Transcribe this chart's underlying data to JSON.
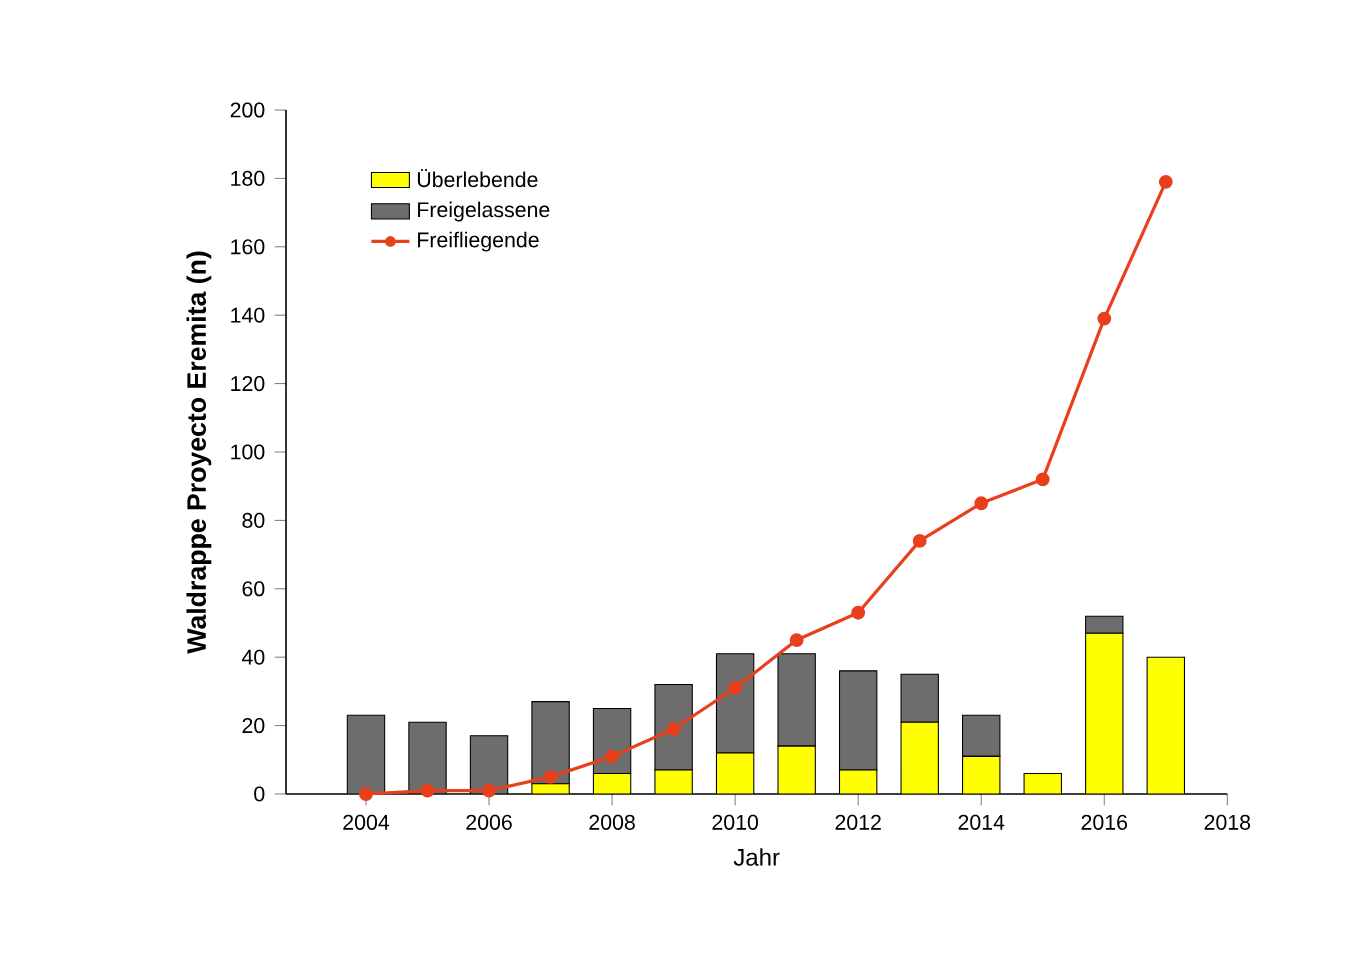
{
  "chart_data": {
    "type": "bar",
    "stacked": true,
    "xlabel": "Jahr",
    "ylabel": "Waldrappe Proyecto Eremita (n)",
    "x": [
      2004,
      2005,
      2006,
      2007,
      2008,
      2009,
      2010,
      2011,
      2012,
      2013,
      2014,
      2015,
      2016,
      2017
    ],
    "series": [
      {
        "name": "Überlebende",
        "color": "#ffff00",
        "values": [
          0,
          0,
          0,
          3,
          6,
          7,
          12,
          14,
          7,
          21,
          11,
          6,
          47,
          40
        ]
      },
      {
        "name": "Freigelassene",
        "color": "#6d6d6d",
        "values": [
          23,
          21,
          17,
          24,
          19,
          25,
          29,
          27,
          29,
          14,
          12,
          0,
          5,
          0
        ]
      },
      {
        "name": "Freifliegende",
        "type": "line",
        "color": "#e8401c",
        "marker": "circle",
        "values": [
          0,
          1,
          1,
          5,
          11,
          19,
          31,
          45,
          53,
          74,
          85,
          92,
          139,
          179
        ]
      }
    ],
    "xlim": [
      2002.7,
      2018
    ],
    "xticks": [
      2004,
      2006,
      2008,
      2010,
      2012,
      2014,
      2016,
      2018
    ],
    "ylim": [
      0,
      200
    ],
    "yticks": [
      0,
      20,
      40,
      60,
      80,
      100,
      120,
      140,
      160,
      180,
      200
    ],
    "grid": false,
    "legend": "top left"
  }
}
